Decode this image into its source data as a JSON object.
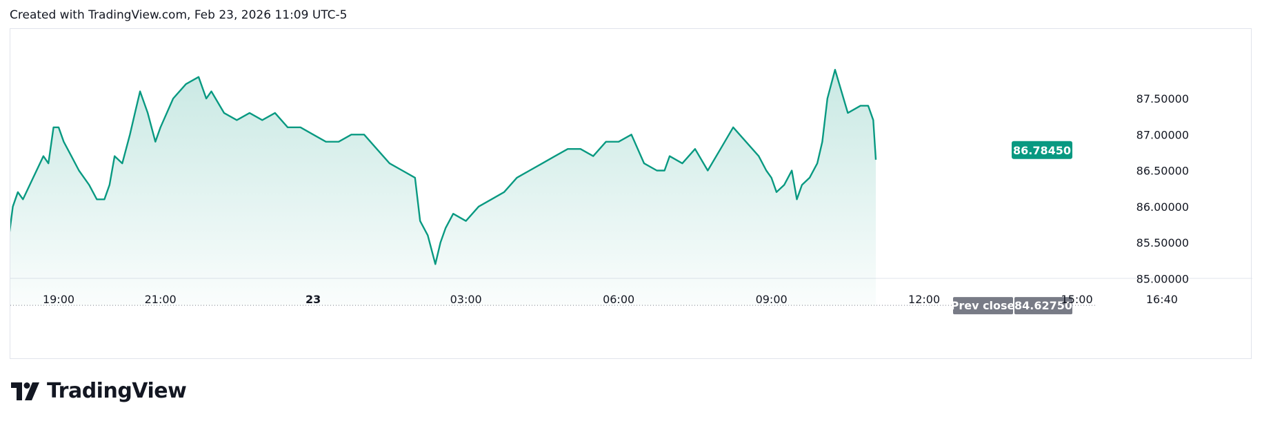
{
  "header": {
    "created_with": "Created with TradingView.com, Feb 23, 2026 11:09 UTC-5"
  },
  "footer": {
    "brand": "TradingView"
  },
  "colors": {
    "line": "#089981",
    "area_top": "rgba(8,153,129,0.22)",
    "area_bottom": "rgba(8,153,129,0.02)",
    "last_price_bg": "#089981",
    "prev_close_bg": "#787b86",
    "grid_border": "#e0e3eb"
  },
  "chart_data": {
    "type": "area",
    "ylim": [
      84.6,
      87.9
    ],
    "y_ticks": [
      "87.50000",
      "87.00000",
      "86.50000",
      "86.00000",
      "85.50000",
      "85.00000"
    ],
    "y_tick_values": [
      87.5,
      87.0,
      86.5,
      86.0,
      85.5,
      85.0
    ],
    "x_ticks": [
      {
        "label": "19:00",
        "h": 19.0,
        "bold": false
      },
      {
        "label": "21:00",
        "h": 21.0,
        "bold": false
      },
      {
        "label": "23",
        "h": 24.0,
        "bold": true
      },
      {
        "label": "03:00",
        "h": 27.0,
        "bold": false
      },
      {
        "label": "06:00",
        "h": 30.0,
        "bold": false
      },
      {
        "label": "09:00",
        "h": 33.0,
        "bold": false
      },
      {
        "label": "12:00",
        "h": 36.0,
        "bold": false
      },
      {
        "label": "15:00",
        "h": 39.0,
        "bold": false
      },
      {
        "label": "16:40",
        "h": 40.67,
        "bold": false
      }
    ],
    "x_range_hours": [
      18.0,
      42.0
    ],
    "last_price": {
      "value": 86.7845,
      "label": "86.78450"
    },
    "prev_close": {
      "value": 84.6275,
      "label": "84.62750",
      "title": "Prev close"
    },
    "series": [
      {
        "x_hours": [
          18.0,
          18.1,
          18.2,
          18.3,
          18.5,
          18.7,
          18.8,
          18.9,
          19.0,
          19.1,
          19.25,
          19.4,
          19.6,
          19.75,
          19.9,
          20.0,
          20.1,
          20.25,
          20.4,
          20.5,
          20.6,
          20.75,
          20.9,
          21.0,
          21.25,
          21.5,
          21.75,
          21.9,
          22.0,
          22.25,
          22.5,
          22.75,
          23.0,
          23.25,
          23.5,
          23.75,
          24.0,
          24.25,
          24.5,
          24.75,
          25.0,
          25.25,
          25.5,
          25.75,
          26.0,
          26.1,
          26.25,
          26.4,
          26.5,
          26.6,
          26.75,
          27.0,
          27.25,
          27.5,
          27.75,
          28.0,
          28.25,
          28.5,
          28.75,
          29.0,
          29.25,
          29.5,
          29.75,
          30.0,
          30.25,
          30.5,
          30.75,
          30.9,
          31.0,
          31.25,
          31.5,
          31.75,
          32.0,
          32.25,
          32.5,
          32.75,
          32.9,
          33.0,
          33.1,
          33.25,
          33.4,
          33.5,
          33.6,
          33.75,
          33.9,
          34.0,
          34.1,
          34.25,
          34.5,
          34.75,
          34.9,
          35.0,
          35.05
        ],
        "y": [
          85.45,
          86.0,
          86.2,
          86.1,
          86.4,
          86.7,
          86.6,
          87.1,
          87.1,
          86.9,
          86.7,
          86.5,
          86.3,
          86.1,
          86.1,
          86.3,
          86.7,
          86.6,
          87.0,
          87.3,
          87.6,
          87.3,
          86.9,
          87.1,
          87.5,
          87.7,
          87.8,
          87.5,
          87.6,
          87.3,
          87.2,
          87.3,
          87.2,
          87.3,
          87.1,
          87.1,
          87.0,
          86.9,
          86.9,
          87.0,
          87.0,
          86.8,
          86.6,
          86.5,
          86.4,
          85.8,
          85.6,
          85.2,
          85.5,
          85.7,
          85.9,
          85.8,
          86.0,
          86.1,
          86.2,
          86.4,
          86.5,
          86.6,
          86.7,
          86.8,
          86.8,
          86.7,
          86.9,
          86.9,
          87.0,
          86.6,
          86.5,
          86.5,
          86.7,
          86.6,
          86.8,
          86.5,
          86.8,
          87.1,
          86.9,
          86.7,
          86.5,
          86.4,
          86.2,
          86.3,
          86.5,
          86.1,
          86.3,
          86.4,
          86.6,
          86.9,
          87.5,
          87.9,
          87.3,
          87.4,
          87.4,
          87.2,
          86.65
        ]
      }
    ],
    "xlabel": "",
    "ylabel": ""
  }
}
